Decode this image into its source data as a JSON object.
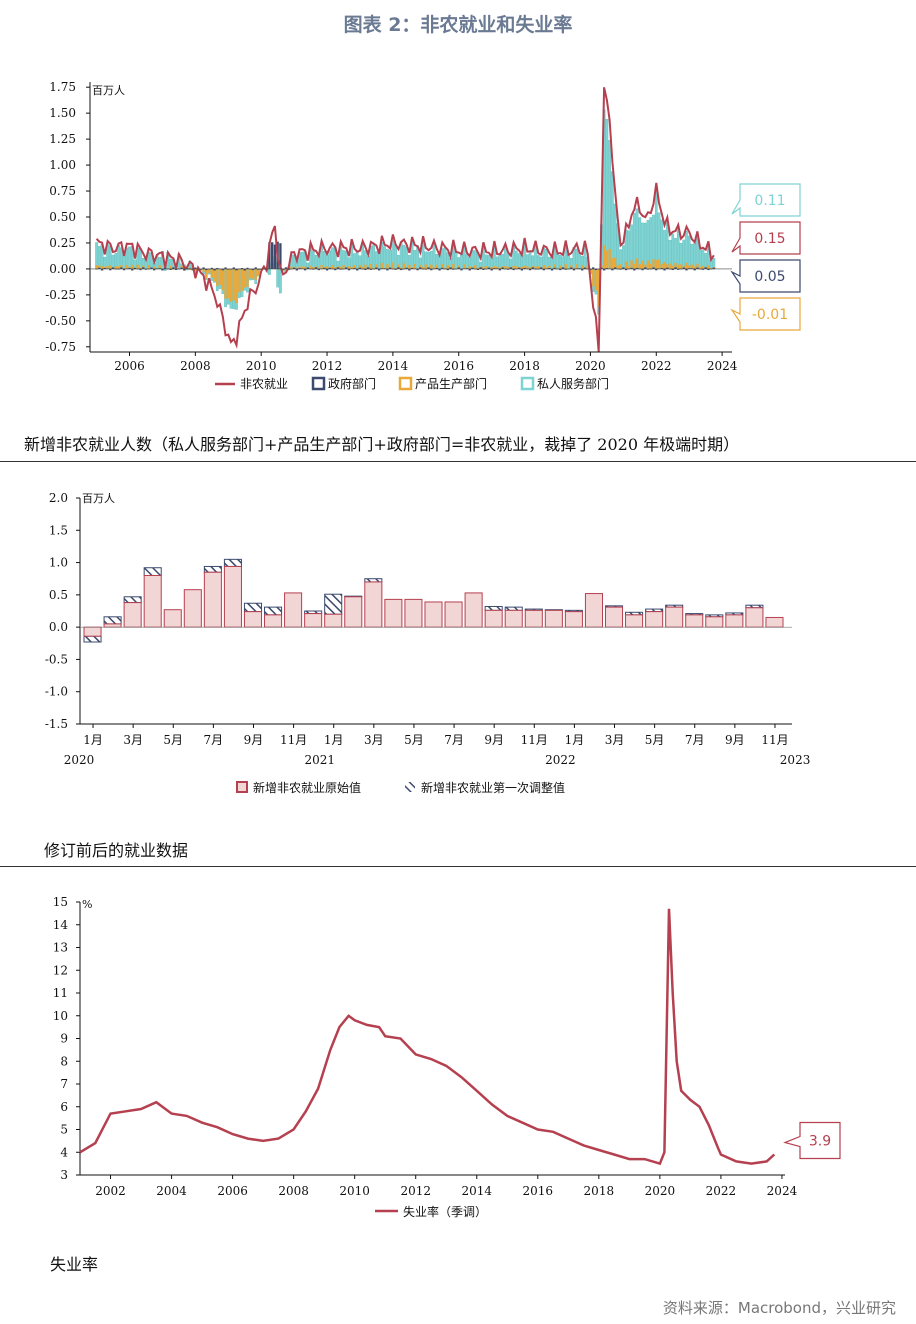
{
  "figure_title": "图表 2：非农就业和失业率",
  "section_captions": {
    "first": "新增非农就业人数（私人服务部门+产品生产部门+政府部门=非农就业，裁掉了 2020 年极端时期）",
    "second": "修订前后的就业数据",
    "third": "失业率"
  },
  "source": "资料来源：Macrobond，兴业研究",
  "colors": {
    "total": "#b5404f",
    "gov": "#3c4a6e",
    "goods": "#e8a93a",
    "private": "#7ed3d3",
    "bar_fill": "#f2d6d6",
    "bar_edge": "#b5404f",
    "rev_edge": "#3c4a6e",
    "unemp": "#b5404f"
  },
  "chart_data": [
    {
      "id": "payrolls_decomposition",
      "type": "bar",
      "unit_label": "百万人",
      "ylim": [
        -0.8,
        1.8
      ],
      "yticks": [
        "1.75",
        "1.50",
        "1.25",
        "1.00",
        "0.75",
        "0.50",
        "0.25",
        "0.00",
        "-0.25",
        "-0.50",
        "-0.75"
      ],
      "xlim": [
        2004.8,
        2024.3
      ],
      "xticks": [
        "2006",
        "2008",
        "2010",
        "2012",
        "2014",
        "2016",
        "2018",
        "2020",
        "2022",
        "2024"
      ],
      "legend": [
        "非农就业",
        "政府部门",
        "产品生产部门",
        "私人服务部门"
      ],
      "key_points": [
        {
          "x": 2005.0,
          "total": 0.25
        },
        {
          "x": 2005.5,
          "total": 0.2
        },
        {
          "x": 2006.0,
          "total": 0.22
        },
        {
          "x": 2006.5,
          "total": 0.15
        },
        {
          "x": 2007.0,
          "total": 0.12
        },
        {
          "x": 2007.5,
          "total": 0.08
        },
        {
          "x": 2008.0,
          "total": 0.0
        },
        {
          "x": 2008.3,
          "total": -0.1
        },
        {
          "x": 2008.6,
          "total": -0.25
        },
        {
          "x": 2008.9,
          "total": -0.55
        },
        {
          "x": 2009.1,
          "total": -0.75
        },
        {
          "x": 2009.3,
          "total": -0.6
        },
        {
          "x": 2009.6,
          "total": -0.3
        },
        {
          "x": 2009.9,
          "total": -0.15
        },
        {
          "x": 2010.2,
          "total": 0.1
        },
        {
          "x": 2010.4,
          "total": 0.45
        },
        {
          "x": 2010.6,
          "total": -0.1
        },
        {
          "x": 2011.0,
          "total": 0.15
        },
        {
          "x": 2012.0,
          "total": 0.2
        },
        {
          "x": 2013.0,
          "total": 0.2
        },
        {
          "x": 2014.0,
          "total": 0.25
        },
        {
          "x": 2015.0,
          "total": 0.22
        },
        {
          "x": 2016.0,
          "total": 0.18
        },
        {
          "x": 2017.0,
          "total": 0.17
        },
        {
          "x": 2018.0,
          "total": 0.2
        },
        {
          "x": 2019.0,
          "total": 0.17
        },
        {
          "x": 2019.9,
          "total": 0.2
        },
        {
          "x": 2020.25,
          "total": -0.8
        },
        {
          "x": 2020.42,
          "total": 1.8
        },
        {
          "x": 2020.58,
          "total": 1.45
        },
        {
          "x": 2020.75,
          "total": 0.7
        },
        {
          "x": 2020.9,
          "total": 0.25
        },
        {
          "x": 2021.1,
          "total": 0.35
        },
        {
          "x": 2021.3,
          "total": 0.6
        },
        {
          "x": 2021.5,
          "total": 0.6
        },
        {
          "x": 2021.7,
          "total": 0.45
        },
        {
          "x": 2022.0,
          "total": 0.75
        },
        {
          "x": 2022.3,
          "total": 0.4
        },
        {
          "x": 2022.7,
          "total": 0.35
        },
        {
          "x": 2023.0,
          "total": 0.35
        },
        {
          "x": 2023.3,
          "total": 0.25
        },
        {
          "x": 2023.7,
          "total": 0.15
        }
      ],
      "callouts": [
        {
          "label": "0.11",
          "color": "#7ed3d3",
          "value": 0.11
        },
        {
          "label": "0.15",
          "color": "#b5404f",
          "value": 0.15
        },
        {
          "label": "0.05",
          "color": "#3c4a6e",
          "value": 0.05
        },
        {
          "label": "-0.01",
          "color": "#e8a93a",
          "value": -0.01
        }
      ]
    },
    {
      "id": "revisions",
      "type": "bar",
      "unit_label": "百万人",
      "ylim": [
        -1.5,
        2.0
      ],
      "yticks": [
        "2.0",
        "1.5",
        "1.0",
        "0.5",
        "0.0",
        "-0.5",
        "-1.0",
        "-1.5"
      ],
      "xticks": [
        "1月",
        "3月",
        "5月",
        "7月",
        "9月",
        "11月",
        "1月",
        "3月",
        "5月",
        "7月",
        "9月",
        "11月",
        "1月",
        "3月",
        "5月",
        "7月",
        "9月",
        "11月"
      ],
      "years": [
        "2020",
        "2021",
        "2022",
        "2023"
      ],
      "legend": [
        "新增非农就业原始值",
        "新增非农就业第一次调整值"
      ],
      "series": [
        {
          "name": "新增非农就业原始值",
          "values": [
            -0.14,
            0.05,
            0.38,
            0.8,
            0.27,
            0.58,
            0.85,
            0.94,
            0.24,
            0.19,
            0.53,
            0.21,
            0.2,
            0.47,
            0.7,
            0.43,
            0.43,
            0.39,
            0.39,
            0.53,
            0.26,
            0.26,
            0.26,
            0.26,
            0.24,
            0.52,
            0.31,
            0.19,
            0.24,
            0.31,
            0.19,
            0.16,
            0.19,
            0.3,
            0.15
          ]
        },
        {
          "name": "新增非农就业第一次调整值",
          "values": [
            -0.23,
            0.16,
            0.47,
            0.92,
            0.27,
            0.58,
            0.94,
            1.05,
            0.37,
            0.31,
            0.53,
            0.25,
            0.51,
            0.48,
            0.75,
            0.43,
            0.43,
            0.39,
            0.39,
            0.53,
            0.32,
            0.31,
            0.28,
            0.27,
            0.26,
            0.52,
            0.33,
            0.23,
            0.28,
            0.34,
            0.21,
            0.19,
            0.22,
            0.34,
            0.15
          ]
        }
      ]
    },
    {
      "id": "unemployment",
      "type": "line",
      "unit_label": "%",
      "ylim": [
        3,
        15
      ],
      "yticks": [
        "15",
        "14",
        "13",
        "12",
        "11",
        "10",
        "9",
        "8",
        "7",
        "6",
        "5",
        "4",
        "3"
      ],
      "xlim": [
        2001,
        2024.1
      ],
      "xticks": [
        "2002",
        "2004",
        "2006",
        "2008",
        "2010",
        "2012",
        "2014",
        "2016",
        "2018",
        "2020",
        "2022",
        "2024"
      ],
      "legend": [
        "失业率（季调）"
      ],
      "last_value_label": "3.9",
      "series": [
        {
          "name": "失业率（季调）",
          "x": [
            2001.0,
            2001.5,
            2002.0,
            2002.5,
            2003.0,
            2003.5,
            2004.0,
            2004.5,
            2005.0,
            2005.5,
            2006.0,
            2006.5,
            2007.0,
            2007.5,
            2008.0,
            2008.4,
            2008.8,
            2009.2,
            2009.5,
            2009.8,
            2010.0,
            2010.4,
            2010.8,
            2011.0,
            2011.5,
            2012.0,
            2012.5,
            2013.0,
            2013.5,
            2014.0,
            2014.5,
            2015.0,
            2015.5,
            2016.0,
            2016.5,
            2017.0,
            2017.5,
            2018.0,
            2018.5,
            2019.0,
            2019.5,
            2020.0,
            2020.15,
            2020.3,
            2020.42,
            2020.55,
            2020.7,
            2020.85,
            2021.0,
            2021.3,
            2021.6,
            2021.9,
            2022.0,
            2022.5,
            2023.0,
            2023.5,
            2023.75
          ],
          "values": [
            4.0,
            4.4,
            5.7,
            5.8,
            5.9,
            6.2,
            5.7,
            5.6,
            5.3,
            5.1,
            4.8,
            4.6,
            4.5,
            4.6,
            5.0,
            5.8,
            6.8,
            8.5,
            9.5,
            10.0,
            9.8,
            9.6,
            9.5,
            9.1,
            9.0,
            8.3,
            8.1,
            7.8,
            7.3,
            6.7,
            6.1,
            5.6,
            5.3,
            5.0,
            4.9,
            4.6,
            4.3,
            4.1,
            3.9,
            3.7,
            3.7,
            3.5,
            4.0,
            14.7,
            11.0,
            8.0,
            6.7,
            6.5,
            6.3,
            6.0,
            5.2,
            4.2,
            3.9,
            3.6,
            3.5,
            3.6,
            3.9
          ]
        }
      ]
    }
  ]
}
